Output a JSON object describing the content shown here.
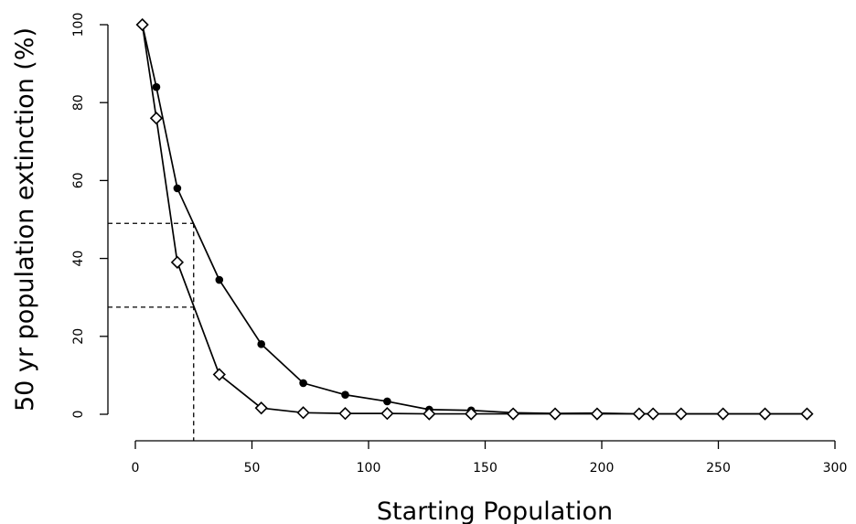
{
  "chart_data": {
    "type": "line",
    "title": "",
    "xlabel": "Starting Population",
    "ylabel": "50 yr population extinction (%)",
    "xlim": [
      0,
      300
    ],
    "ylim": [
      0,
      100
    ],
    "x_ticks": [
      0,
      50,
      100,
      150,
      200,
      250,
      300
    ],
    "y_ticks": [
      0,
      20,
      40,
      60,
      80,
      100
    ],
    "grid": false,
    "legend": "none",
    "series": [
      {
        "marker": "filled-circle",
        "color": "#000000",
        "x": [
          3,
          9,
          18,
          36,
          54,
          72,
          90,
          108,
          126,
          144,
          162,
          180,
          198,
          216,
          222,
          234,
          252,
          270,
          288
        ],
        "y": [
          100,
          84,
          58,
          34.5,
          18,
          8,
          5,
          3.3,
          1.2,
          1.0,
          0.4,
          0.2,
          0.3,
          0.1,
          0.1,
          0.1,
          0.1,
          0.1,
          0.1
        ]
      },
      {
        "marker": "open-diamond",
        "color": "#000000",
        "x": [
          3,
          9,
          18,
          36,
          54,
          72,
          90,
          108,
          126,
          144,
          162,
          180,
          198,
          216,
          222,
          234,
          252,
          270,
          288
        ],
        "y": [
          100,
          76,
          39,
          10.2,
          1.6,
          0.4,
          0.2,
          0.2,
          0.1,
          0.1,
          0.1,
          0.1,
          0.1,
          0.1,
          0.1,
          0.1,
          0.1,
          0.1,
          0.1
        ]
      }
    ],
    "reference_lines": [
      {
        "style": "dashed",
        "x": 25,
        "y": 49
      },
      {
        "style": "dashed",
        "x": 25,
        "y": 27.5
      }
    ]
  }
}
